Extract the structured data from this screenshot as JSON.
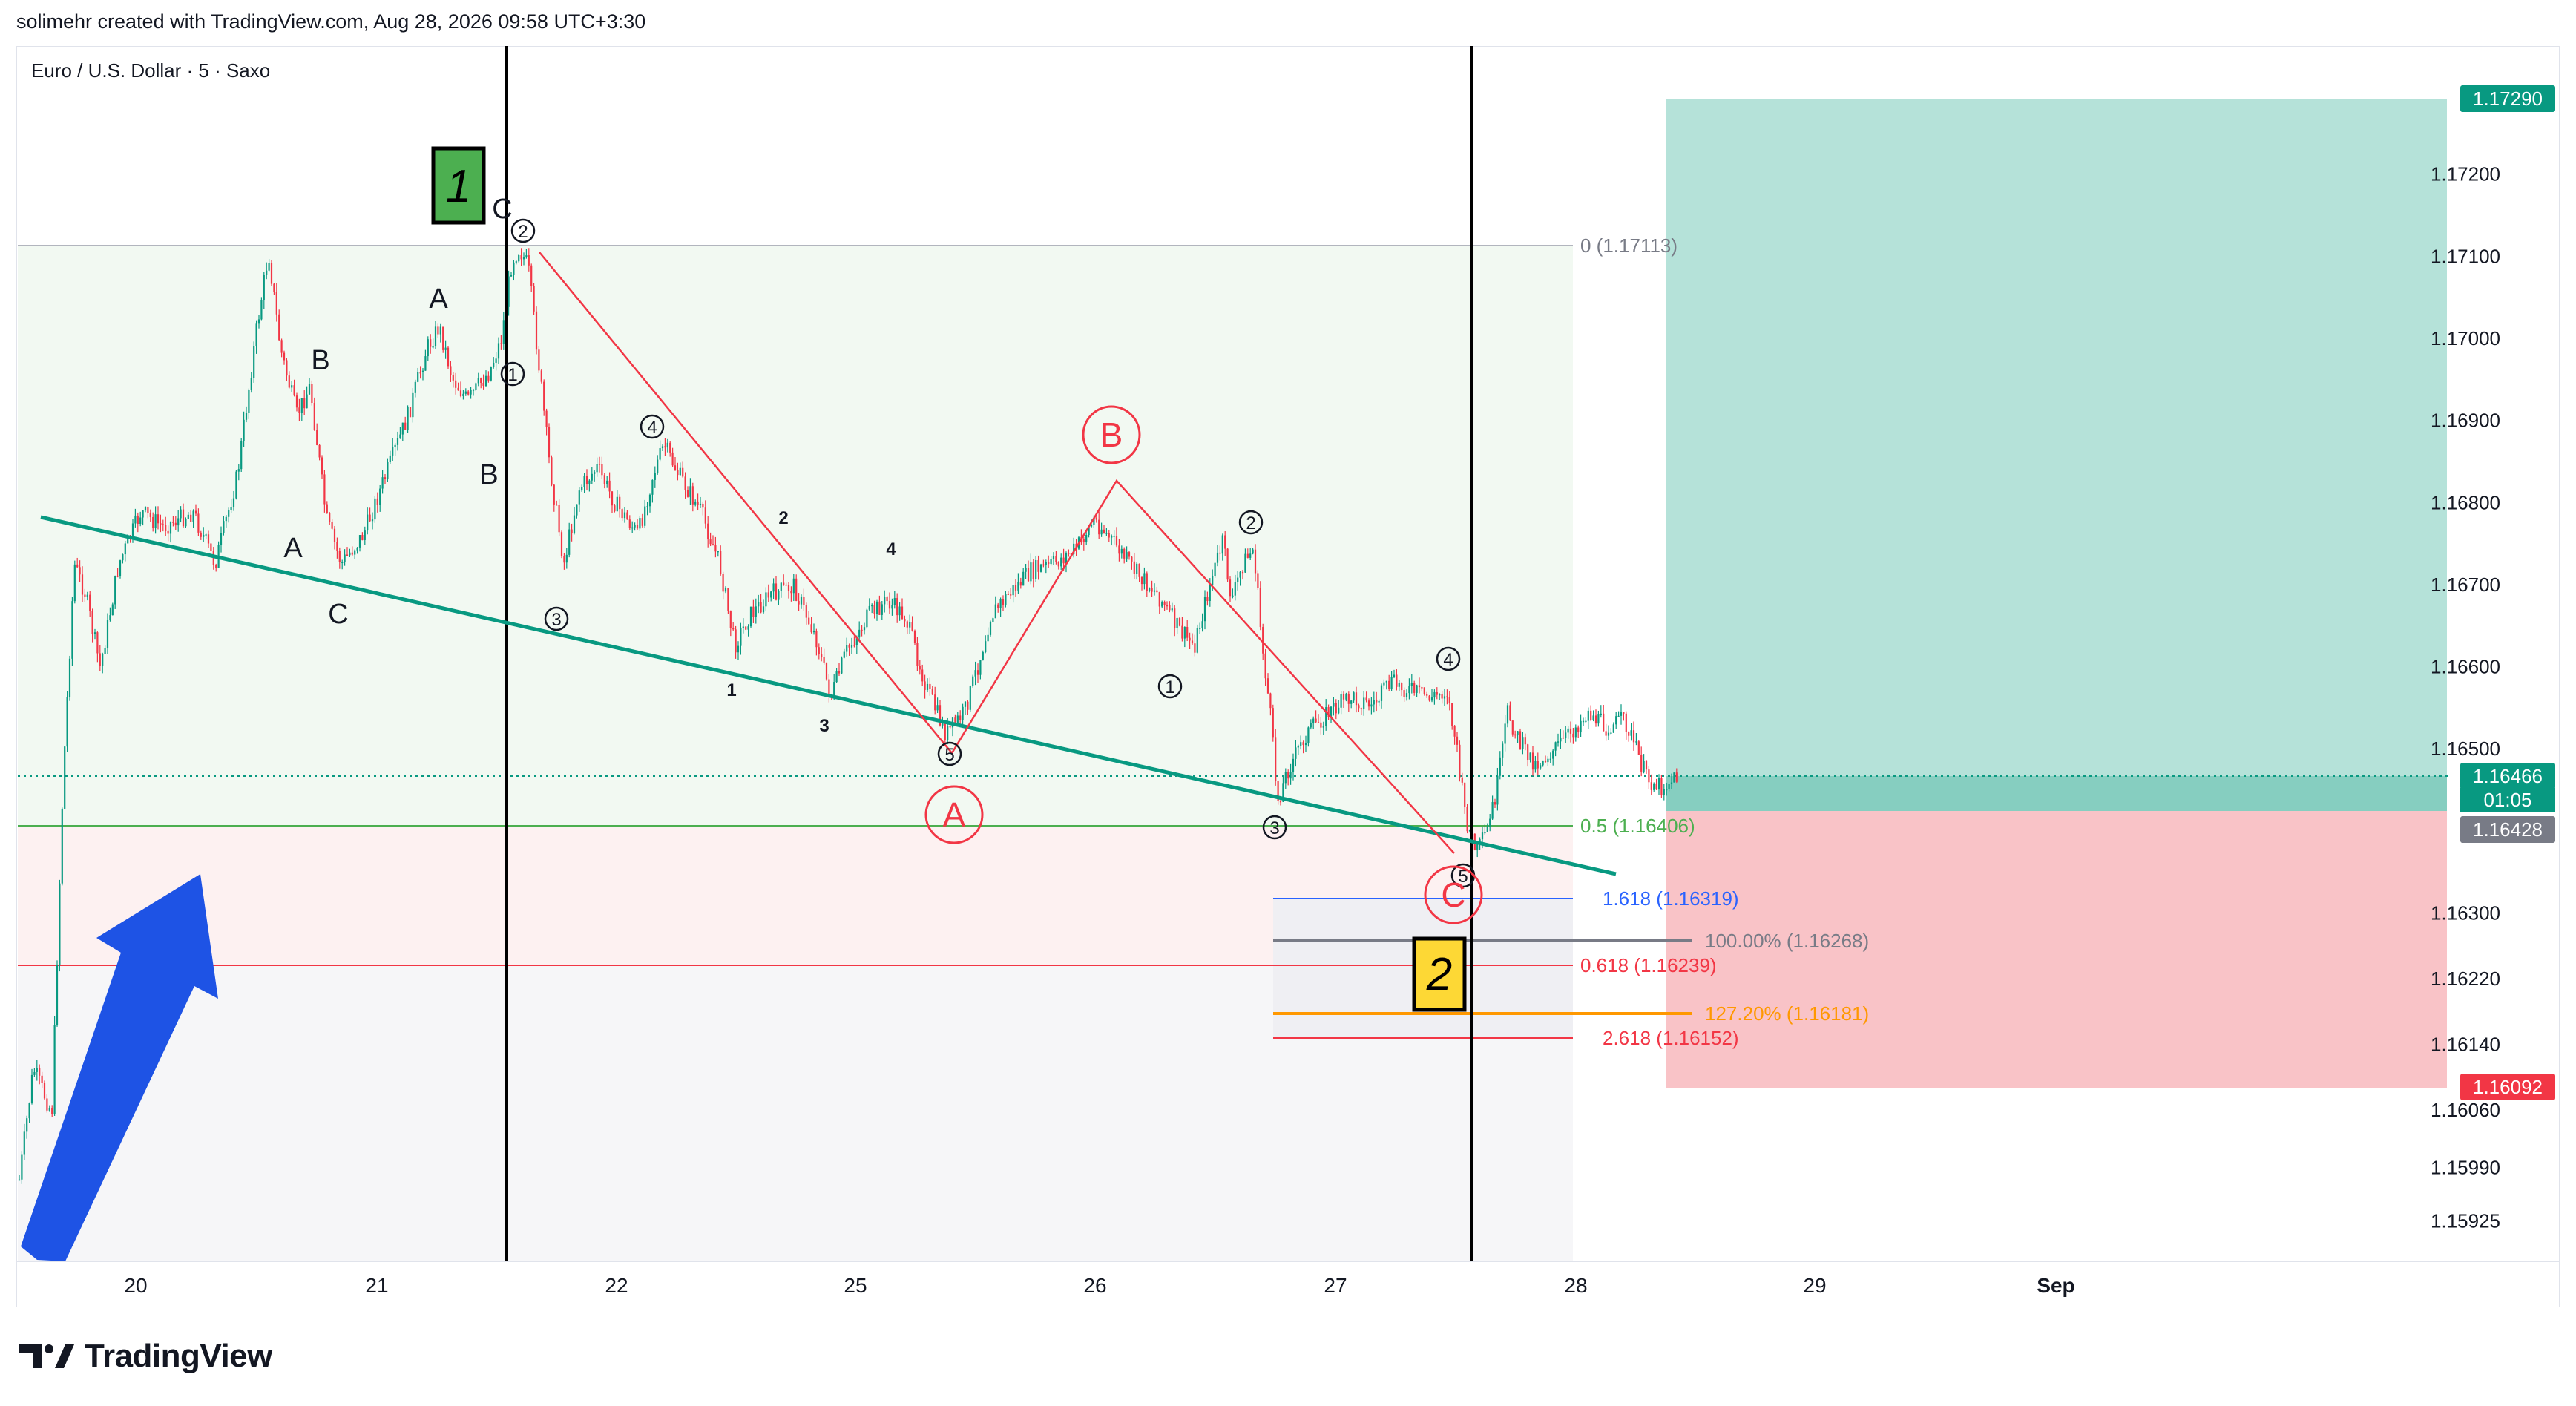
{
  "header": {
    "credit": "solimehr created with TradingView.com, Aug 28, 2026 09:58 UTC+3:30"
  },
  "brand": {
    "name": "TradingView"
  },
  "chart_data": {
    "type": "candlestick",
    "title": "Euro / U.S. Dollar · 5 · Saxo",
    "x_ticks": [
      "20",
      "21",
      "22",
      "25",
      "26",
      "27",
      "28",
      "29",
      "Sep"
    ],
    "y_ticks": [
      "1.17200",
      "1.17100",
      "1.17000",
      "1.16900",
      "1.16800",
      "1.16700",
      "1.16600",
      "1.16500",
      "1.16300",
      "1.16220",
      "1.16140",
      "1.16060",
      "1.15990",
      "1.15925"
    ],
    "y_tick_values": [
      1.172,
      1.171,
      1.17,
      1.169,
      1.168,
      1.167,
      1.166,
      1.165,
      1.163,
      1.1622,
      1.1614,
      1.1606,
      1.1599,
      1.15925
    ],
    "price_labels": [
      {
        "text": "1.17290",
        "kind": "target",
        "color": "#089981"
      },
      {
        "text": "1.16466",
        "kind": "last",
        "color": "#089981"
      },
      {
        "text": "01:05",
        "kind": "countdown",
        "color": "#089981"
      },
      {
        "text": "1.16428",
        "kind": "entry",
        "color": "#787b86"
      },
      {
        "text": "1.16092",
        "kind": "stop",
        "color": "#f23645"
      }
    ],
    "fib_levels": [
      {
        "label": "0 (1.17113)",
        "value": 1.17113,
        "color": "#787b86"
      },
      {
        "label": "0.5 (1.16406)",
        "value": 1.16406,
        "color": "#4caf50"
      },
      {
        "label": "0.618 (1.16239)",
        "value": 1.16239,
        "color": "#f23645"
      }
    ],
    "extension_levels": [
      {
        "label": "1.618 (1.16319)",
        "value": 1.16319,
        "color": "#2962ff"
      },
      {
        "label": "100.00% (1.16268)",
        "value": 1.16268,
        "color": "#787b86"
      },
      {
        "label": "127.20% (1.16181)",
        "value": 1.16181,
        "color": "#ff9800"
      },
      {
        "label": "2.618 (1.16152)",
        "value": 1.16152,
        "color": "#f23645"
      }
    ],
    "position": {
      "target": 1.1729,
      "entry": 1.16428,
      "stop": 1.16092,
      "last": 1.16466
    },
    "wave_labels_black": [
      "A",
      "B",
      "C",
      "A",
      "B",
      "C"
    ],
    "wave_labels_circled": [
      "2",
      "1",
      "3",
      "4",
      "5",
      "1",
      "2",
      "3",
      "4",
      "5"
    ],
    "wave_labels_small": [
      "1",
      "2",
      "3",
      "4"
    ],
    "wave_labels_red": [
      "A",
      "B",
      "C"
    ],
    "box_labels": [
      "1",
      "2"
    ],
    "colors": {
      "up": "#089981",
      "down": "#f23645",
      "trendline": "#089981",
      "arrow": "#1e53e5",
      "box1": "#4caf50",
      "box2": "#fdd835"
    }
  }
}
